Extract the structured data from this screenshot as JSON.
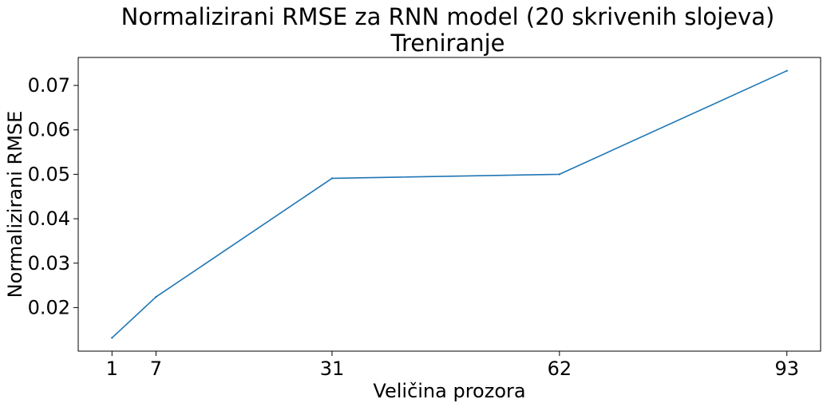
{
  "chart_data": {
    "type": "line",
    "title": [
      "Normalizirani RMSE za RNN model (20 skrivenih slojeva)",
      "Treniranje"
    ],
    "xlabel": "Veličina prozora",
    "ylabel": "Normalizirani RMSE",
    "x": [
      1,
      7,
      31,
      62,
      93
    ],
    "series": [
      {
        "values": [
          0.0132,
          0.0224,
          0.0491,
          0.05,
          0.0733
        ],
        "color": "#1f77b4"
      }
    ],
    "xticks": [
      1,
      7,
      31,
      62,
      93
    ],
    "xtick_labels": [
      "1",
      "7",
      "31",
      "62",
      "93"
    ],
    "yticks": [
      0.02,
      0.03,
      0.04,
      0.05,
      0.06,
      0.07
    ],
    "ytick_labels": [
      "0.02",
      "0.03",
      "0.04",
      "0.05",
      "0.06",
      "0.07"
    ],
    "xlim": [
      -3.6,
      97.6
    ],
    "ylim": [
      0.0102,
      0.0763
    ],
    "grid": false,
    "legend": "none"
  }
}
